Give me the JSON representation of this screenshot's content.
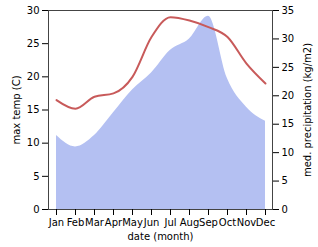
{
  "chart_data": {
    "type": "line",
    "x_label": "date (month)",
    "y_label": "max temp (C)",
    "y2_label": "med. precipitation (kg/m2)",
    "categories": [
      "Jan",
      "Feb",
      "Mar",
      "Apr",
      "May",
      "Jun",
      "Jul",
      "Aug",
      "Sep",
      "Oct",
      "Nov",
      "Dec"
    ],
    "ylim": [
      0,
      30
    ],
    "yticks": [
      0,
      5,
      10,
      15,
      20,
      25,
      30
    ],
    "y2lim": [
      0,
      35
    ],
    "y2ticks": [
      0,
      5,
      10,
      15,
      20,
      25,
      30,
      35
    ],
    "series": [
      {
        "name": "med. precipitation",
        "type": "area",
        "axis": "y2",
        "color": "#b4c0f2",
        "values": [
          13,
          11,
          13,
          17,
          21,
          24,
          28,
          30,
          34,
          23,
          18,
          15.5
        ]
      },
      {
        "name": "max temp",
        "type": "line",
        "color": "#c85a5a",
        "values": [
          16.5,
          15.2,
          17,
          17.5,
          20,
          26,
          29,
          28.5,
          27.5,
          26,
          22,
          19
        ]
      }
    ]
  }
}
